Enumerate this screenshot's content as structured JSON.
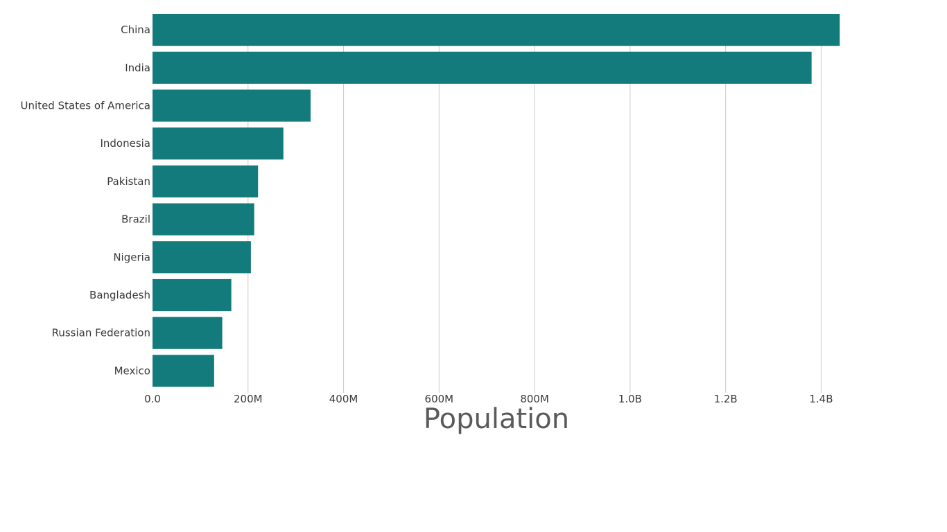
{
  "chart_data": {
    "type": "bar",
    "orientation": "horizontal",
    "categories": [
      "China",
      "India",
      "United States of America",
      "Indonesia",
      "Pakistan",
      "Brazil",
      "Nigeria",
      "Bangladesh",
      "Russian Federation",
      "Mexico"
    ],
    "values": [
      1439000000,
      1380000000,
      331000000,
      274000000,
      221000000,
      213000000,
      206000000,
      165000000,
      146000000,
      129000000
    ],
    "xlabel": "Population",
    "ylabel": "",
    "xlim": [
      0,
      1440000000
    ],
    "ticks": [
      0,
      200000000,
      400000000,
      600000000,
      800000000,
      1000000000,
      1200000000,
      1400000000
    ],
    "tick_labels": [
      "0.0",
      "200M",
      "400M",
      "600M",
      "800M",
      "1.0B",
      "1.2B",
      "1.4B"
    ],
    "grid": true,
    "colors": {
      "bar": "#147b7d",
      "grid": "#cccccc"
    }
  }
}
